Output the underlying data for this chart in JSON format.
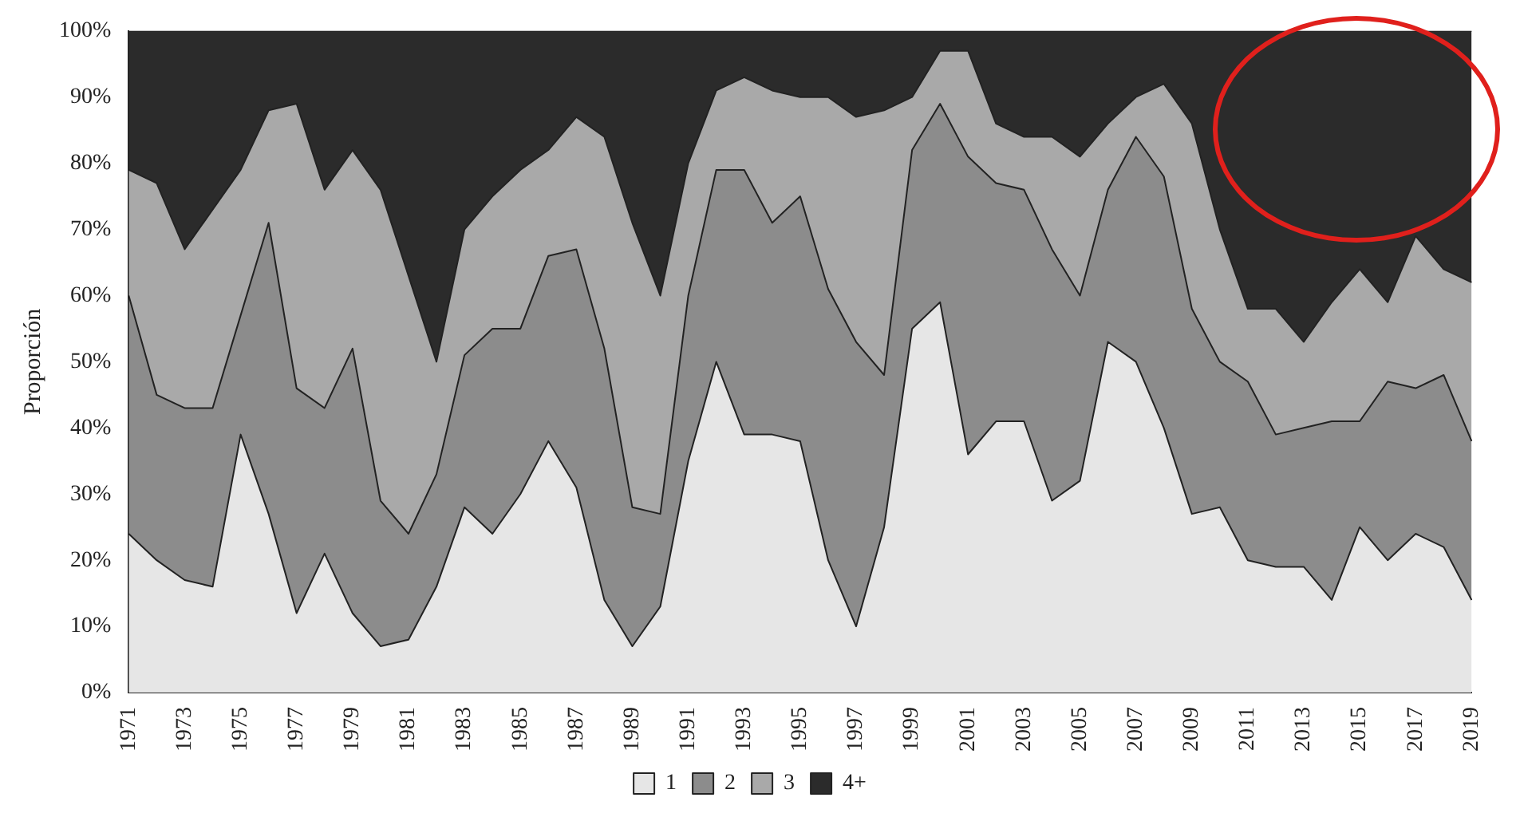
{
  "chart_data": {
    "type": "area",
    "stacked": true,
    "ylabel": "Proporción",
    "categories": [
      "1971",
      null,
      "1973",
      null,
      "1975",
      null,
      "1977",
      null,
      "1979",
      null,
      "1981",
      null,
      "1983",
      null,
      "1985",
      null,
      "1987",
      null,
      "1989",
      null,
      "1991",
      null,
      "1993",
      null,
      "1995",
      null,
      "1997",
      null,
      "1999",
      null,
      "2001",
      null,
      "2003",
      null,
      "2005",
      null,
      "2007",
      null,
      "2009",
      null,
      "2011",
      null,
      "2013",
      null,
      "2015",
      null,
      "2017",
      null,
      "2019"
    ],
    "series": [
      {
        "name": "1",
        "color": "#e6e6e6",
        "values": [
          24,
          20,
          17,
          16,
          39,
          27,
          12,
          21,
          12,
          7,
          8,
          16,
          28,
          24,
          30,
          38,
          31,
          14,
          7,
          13,
          35,
          50,
          39,
          39,
          38,
          20,
          10,
          25,
          55,
          59,
          36,
          41,
          41,
          29,
          32,
          53,
          50,
          40,
          27,
          28,
          20,
          19,
          19,
          14,
          25,
          20,
          24,
          22,
          14
        ]
      },
      {
        "name": "2",
        "color": "#8c8c8c",
        "values": [
          36,
          25,
          26,
          27,
          18,
          44,
          34,
          22,
          40,
          22,
          16,
          17,
          23,
          31,
          25,
          28,
          36,
          38,
          21,
          14,
          25,
          29,
          40,
          32,
          37,
          41,
          43,
          23,
          27,
          30,
          45,
          36,
          35,
          38,
          28,
          23,
          34,
          38,
          31,
          22,
          27,
          20,
          21,
          27,
          16,
          27,
          22,
          26,
          24
        ]
      },
      {
        "name": "3",
        "color": "#a9a9a9",
        "values": [
          19,
          32,
          24,
          30,
          22,
          17,
          43,
          33,
          30,
          47,
          39,
          17,
          19,
          20,
          24,
          16,
          20,
          32,
          43,
          33,
          20,
          12,
          14,
          20,
          15,
          29,
          34,
          40,
          8,
          8,
          16,
          9,
          8,
          17,
          21,
          10,
          6,
          14,
          28,
          20,
          11,
          19,
          13,
          18,
          23,
          12,
          23,
          16,
          24
        ]
      },
      {
        "name": "4+",
        "color": "#2b2b2b",
        "values": [
          21,
          23,
          33,
          27,
          21,
          12,
          11,
          24,
          18,
          24,
          37,
          50,
          30,
          25,
          21,
          18,
          13,
          16,
          29,
          40,
          20,
          9,
          7,
          9,
          10,
          10,
          13,
          12,
          10,
          3,
          3,
          14,
          16,
          16,
          19,
          14,
          10,
          8,
          14,
          30,
          42,
          42,
          47,
          41,
          36,
          41,
          31,
          36,
          38
        ]
      }
    ],
    "ylim": [
      0,
      100
    ],
    "yticks": [
      {
        "value": 0,
        "label": "0%"
      },
      {
        "value": 10,
        "label": "10%"
      },
      {
        "value": 20,
        "label": "20%"
      },
      {
        "value": 30,
        "label": "30%"
      },
      {
        "value": 40,
        "label": "40%"
      },
      {
        "value": 50,
        "label": "50%"
      },
      {
        "value": 60,
        "label": "60%"
      },
      {
        "value": 70,
        "label": "70%"
      },
      {
        "value": 80,
        "label": "80%"
      },
      {
        "value": 90,
        "label": "90%"
      },
      {
        "value": 100,
        "label": "100%"
      }
    ],
    "grid": false,
    "legend": "bottom"
  }
}
